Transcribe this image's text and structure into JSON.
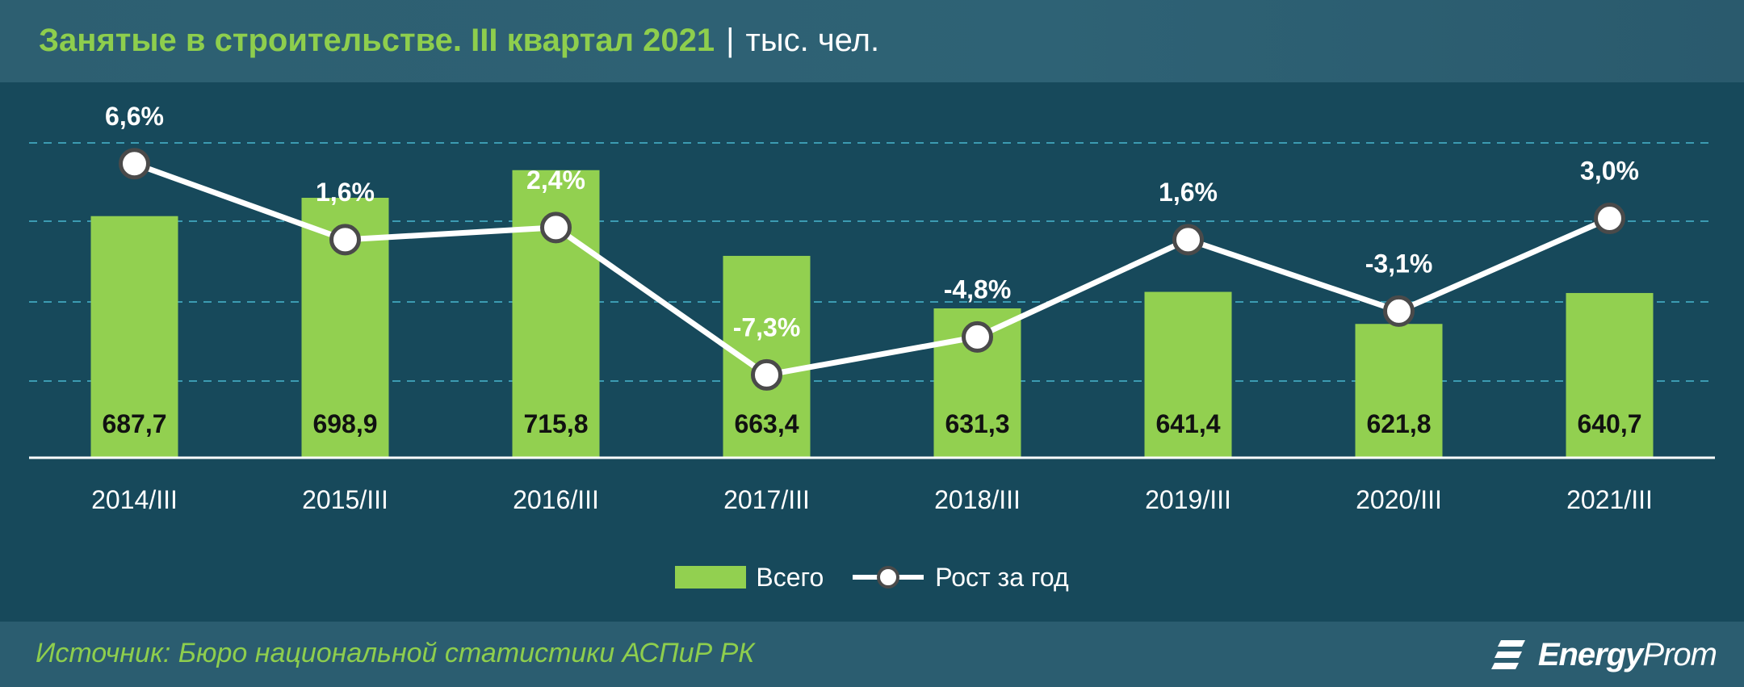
{
  "title": {
    "main": "Занятые в строительстве. III квартал 2021",
    "separator": "|",
    "unit": "тыс. чел."
  },
  "source": "Источник: Бюро национальной статистики АСПиР РК",
  "logo": {
    "icon": "energyprom-logo-icon",
    "text_bold": "Energy",
    "text_regular": "Prom"
  },
  "colors": {
    "bar": "#92d050",
    "line": "#ffffff",
    "grid": "#3c9bb2",
    "axis": "#ffffff",
    "title_accent": "#8ece4d"
  },
  "chart_data": {
    "type": "bar",
    "categories": [
      "2014/III",
      "2015/III",
      "2016/III",
      "2017/III",
      "2018/III",
      "2019/III",
      "2020/III",
      "2021/III"
    ],
    "series": [
      {
        "name": "Всего",
        "type": "bar",
        "values": [
          687.7,
          698.9,
          715.8,
          663.4,
          631.3,
          641.4,
          621.8,
          640.7
        ],
        "labels": [
          "687,7",
          "698,9",
          "715,8",
          "663,4",
          "631,3",
          "641,4",
          "621,8",
          "640,7"
        ]
      },
      {
        "name": "Рост за год",
        "type": "line",
        "values": [
          6.6,
          1.6,
          2.4,
          -7.3,
          -4.8,
          1.6,
          -3.1,
          3.0
        ],
        "labels": [
          "6,6%",
          "1,6%",
          "2,4%",
          "-7,3%",
          "-4,8%",
          "1,6%",
          "-3,1%",
          "3,0%"
        ]
      }
    ],
    "legend_position": "bottom",
    "grid": true
  }
}
